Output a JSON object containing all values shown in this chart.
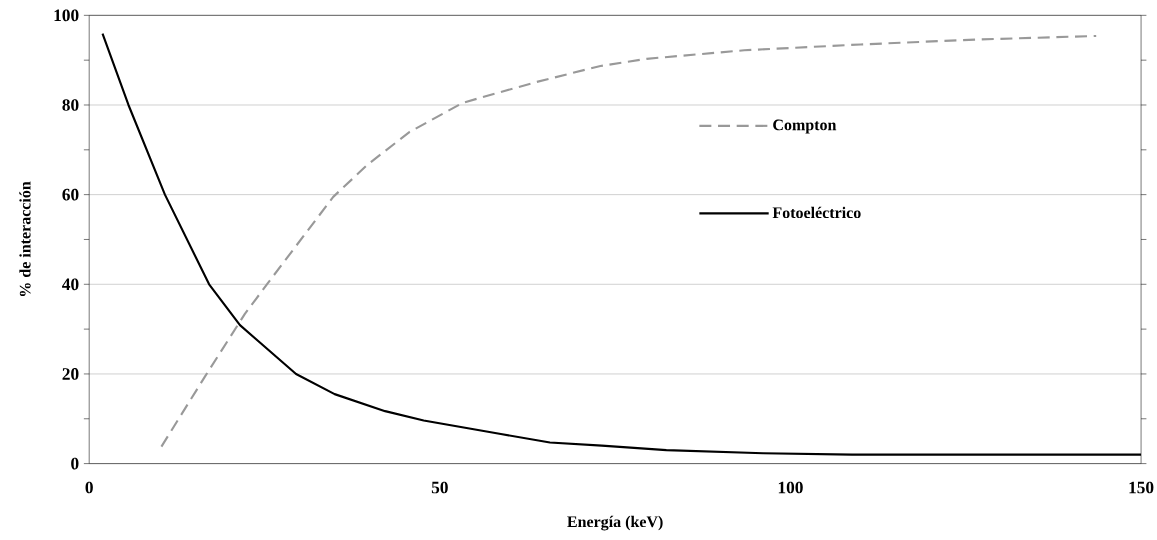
{
  "chart_data": {
    "type": "line",
    "xlabel": "Energía (keV)",
    "ylabel": "% de interacción",
    "xlim": [
      0,
      150
    ],
    "xticks": [
      0,
      50,
      100,
      150
    ],
    "ylim": [
      0,
      100
    ],
    "yticks": [
      0,
      {
        "value": 10,
        "label": null
      },
      20,
      {
        "value": 30,
        "label": null
      },
      40,
      {
        "value": 50,
        "label": null
      },
      60,
      {
        "value": 70,
        "label": null
      },
      80,
      {
        "value": 90,
        "label": null
      },
      100
    ],
    "grid": "y",
    "legend": "right",
    "series": [
      {
        "name": "Compton",
        "color": "#999999",
        "line_style": "dashed",
        "x": [
          10.3,
          16.5,
          22.2,
          25.5,
          34.8,
          39.7,
          45.7,
          53.3,
          63.7,
          72.9,
          79.5,
          93.4,
          110,
          126.5,
          143.6
        ],
        "values": [
          3.8,
          19.4,
          33.4,
          40.3,
          59.5,
          66.7,
          74,
          80.5,
          85.1,
          88.7,
          90.3,
          92.2,
          93.5,
          94.6,
          95.4
        ]
      },
      {
        "name": "Fotoeléctrico",
        "color": "#000000",
        "line_style": "solid",
        "x": [
          1.9,
          5.6,
          10.8,
          17.1,
          21.5,
          29.5,
          35,
          42.2,
          47.7,
          58.7,
          65.7,
          73.1,
          82.3,
          96.1,
          108.8,
          150
        ],
        "values": [
          95.9,
          80,
          60,
          40,
          30.9,
          20,
          15.5,
          11.7,
          9.6,
          6.6,
          4.7,
          4,
          3,
          2.3,
          2,
          2
        ]
      }
    ]
  }
}
